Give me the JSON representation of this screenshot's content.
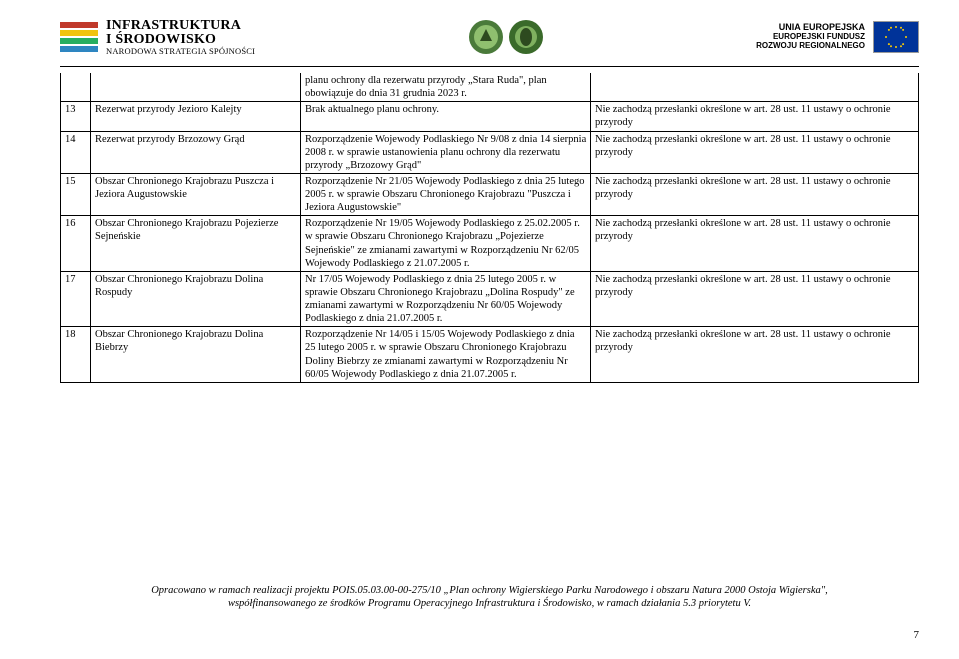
{
  "header": {
    "pois_title": "INFRASTRUKTURA",
    "pois_title2": "I ŚRODOWISKO",
    "pois_sub": "NARODOWA STRATEGIA SPÓJNOŚCI",
    "eu_line1": "UNIA EUROPEJSKA",
    "eu_line2": "EUROPEJSKI FUNDUSZ",
    "eu_line3": "ROZWOJU REGIONALNEGO"
  },
  "colors": {
    "pois_red": "#c0392b",
    "pois_yellow": "#f1c40f",
    "pois_green": "#27ae60",
    "pois_blue": "#2e86c1",
    "circle_green": "#4a7a3a",
    "circle_inner": "#8fbf6f",
    "eu_blue": "#003399",
    "eu_gold": "#ffcc00"
  },
  "rows": [
    {
      "num": "",
      "name": "",
      "basis": "planu ochrony dla rezerwatu przyrody „Stara Ruda\", plan obowiązuje do dnia 31 grudnia 2023 r.",
      "remark": "",
      "hanging": true
    },
    {
      "num": "13",
      "name": "Rezerwat przyrody Jezioro Kalejty",
      "basis": "Brak aktualnego planu ochrony.",
      "remark": "Nie zachodzą przesłanki określone w art. 28 ust. 11 ustawy o ochronie przyrody"
    },
    {
      "num": "14",
      "name": "Rezerwat przyrody Brzozowy Grąd",
      "basis": "Rozporządzenie Wojewody Podlaskiego Nr 9/08 z dnia 14 sierpnia 2008 r. w sprawie ustanowienia planu ochrony dla rezerwatu przyrody „Brzozowy Grąd\"",
      "remark": "Nie zachodzą przesłanki określone w art. 28 ust. 11 ustawy o ochronie przyrody"
    },
    {
      "num": "15",
      "name": "Obszar Chronionego Krajobrazu Puszcza i Jeziora Augustowskie",
      "basis": "Rozporządzenie Nr 21/05 Wojewody Podlaskiego z dnia 25 lutego 2005 r. w sprawie Obszaru Chronionego Krajobrazu \"Puszcza i Jeziora Augustowskie\"",
      "remark": "Nie zachodzą przesłanki określone w art. 28 ust. 11 ustawy o ochronie przyrody"
    },
    {
      "num": "16",
      "name": "Obszar Chronionego Krajobrazu Pojezierze Sejneńskie",
      "basis": "Rozporządzenie Nr 19/05 Wojewody Podlaskiego z 25.02.2005 r. w sprawie Obszaru Chronionego Krajobrazu „Pojezierze Sejneńskie\" ze zmianami zawartymi w Rozporządzeniu Nr 62/05 Wojewody Podlaskiego z 21.07.2005 r.",
      "remark": "Nie zachodzą przesłanki określone w art. 28 ust. 11 ustawy o ochronie przyrody"
    },
    {
      "num": "17",
      "name": "Obszar Chronionego Krajobrazu Dolina Rospudy",
      "basis": "Nr 17/05 Wojewody Podlaskiego z dnia 25 lutego 2005 r. w sprawie Obszaru Chronionego Krajobrazu „Dolina Rospudy\" ze zmianami zawartymi w Rozporządzeniu Nr 60/05 Wojewody Podlaskiego z dnia 21.07.2005 r.",
      "remark": "Nie zachodzą przesłanki określone w art. 28 ust. 11 ustawy o ochronie przyrody"
    },
    {
      "num": "18",
      "name": "Obszar Chronionego Krajobrazu Dolina Biebrzy",
      "basis": "Rozporządzenie Nr 14/05 i 15/05 Wojewody Podlaskiego z dnia 25 lutego 2005 r. w sprawie Obszaru Chronionego Krajobrazu Doliny Biebrzy ze zmianami zawartymi w Rozporządzeniu Nr 60/05 Wojewody Podlaskiego z dnia 21.07.2005 r.",
      "remark": "Nie zachodzą przesłanki określone w art. 28 ust. 11 ustawy o ochronie przyrody"
    }
  ],
  "footer_line1": "Opracowano w ramach realizacji projektu POIS.05.03.00-00-275/10 „Plan ochrony Wigierskiego Parku Narodowego i obszaru Natura 2000 Ostoja Wigierska\",",
  "footer_line2": "współfinansowanego ze środków Programu Operacyjnego Infrastruktura i Środowisko, w ramach działania 5.3 priorytetu V.",
  "page_number": "7"
}
